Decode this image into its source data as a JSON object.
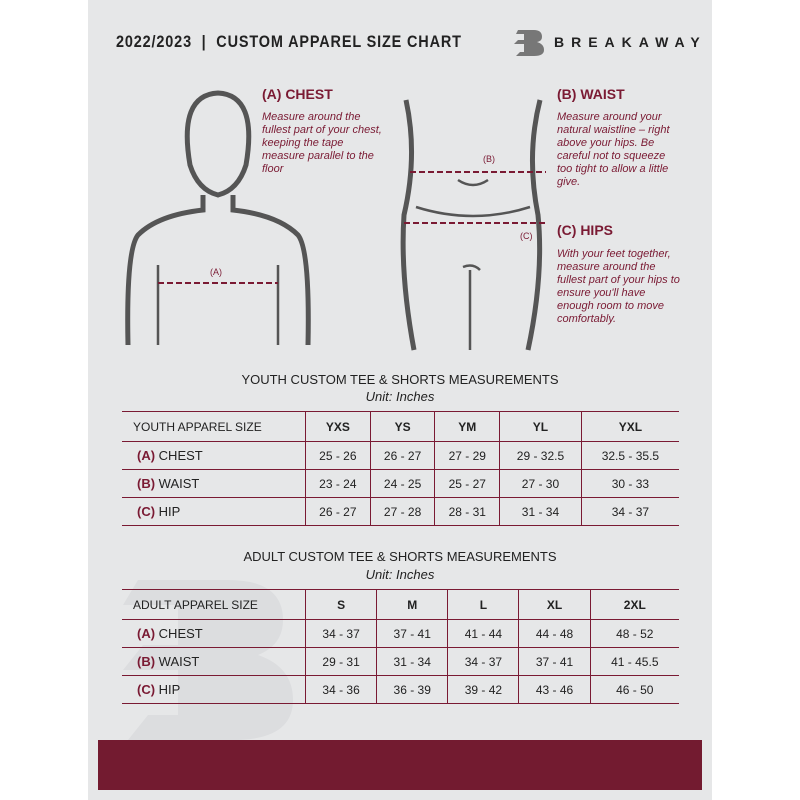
{
  "header": {
    "title": "2022/2023  |  CUSTOM APPAREL SIZE CHART",
    "brand": "BREAKAWAY",
    "logo_letter": "B"
  },
  "guides": {
    "chest": {
      "heading": "(A) CHEST",
      "text": "Measure around the fullest part of your chest, keeping the tape measure parallel to the floor",
      "marker": "(A)"
    },
    "waist": {
      "heading": "(B) WAIST",
      "text": "Measure around your natural waistline – right above your hips. Be careful not to squeeze too tight to allow a little give.",
      "marker": "(B)"
    },
    "hips": {
      "heading": "(C) HIPS",
      "text": "With your feet together, measure around the fullest part of your hips to ensure you'll have enough room to move comfortably.",
      "marker": "(C)"
    }
  },
  "colors": {
    "accent": "#731b30",
    "background": "#e6e7e8"
  },
  "youth": {
    "title": "YOUTH CUSTOM TEE & SHORTS MEASUREMENTS",
    "unit": "Unit: Inches",
    "header": "YOUTH APPAREL SIZE",
    "sizes": [
      "YXS",
      "YS",
      "YM",
      "YL",
      "YXL"
    ],
    "rows": [
      {
        "code": "(A)",
        "label": "CHEST",
        "values": [
          "25 - 26",
          "26 - 27",
          "27 - 29",
          "29 - 32.5",
          "32.5 - 35.5"
        ]
      },
      {
        "code": "(B)",
        "label": "WAIST",
        "values": [
          "23 - 24",
          "24 - 25",
          "25 - 27",
          "27 - 30",
          "30 - 33"
        ]
      },
      {
        "code": "(C)",
        "label": "HIP",
        "values": [
          "26 - 27",
          "27 - 28",
          "28 - 31",
          "31 - 34",
          "34 - 37"
        ]
      }
    ]
  },
  "adult": {
    "title": "ADULT CUSTOM TEE & SHORTS MEASUREMENTS",
    "unit": "Unit: Inches",
    "header": "ADULT APPAREL SIZE",
    "sizes": [
      "S",
      "M",
      "L",
      "XL",
      "2XL"
    ],
    "rows": [
      {
        "code": "(A)",
        "label": "CHEST",
        "values": [
          "34 - 37",
          "37 - 41",
          "41 - 44",
          "44 - 48",
          "48 - 52"
        ]
      },
      {
        "code": "(B)",
        "label": "WAIST",
        "values": [
          "29 - 31",
          "31 - 34",
          "34 - 37",
          "37 - 41",
          "41 - 45.5"
        ]
      },
      {
        "code": "(C)",
        "label": "HIP",
        "values": [
          "34 - 36",
          "36 - 39",
          "39 - 42",
          "43 - 46",
          "46 - 50"
        ]
      }
    ]
  }
}
